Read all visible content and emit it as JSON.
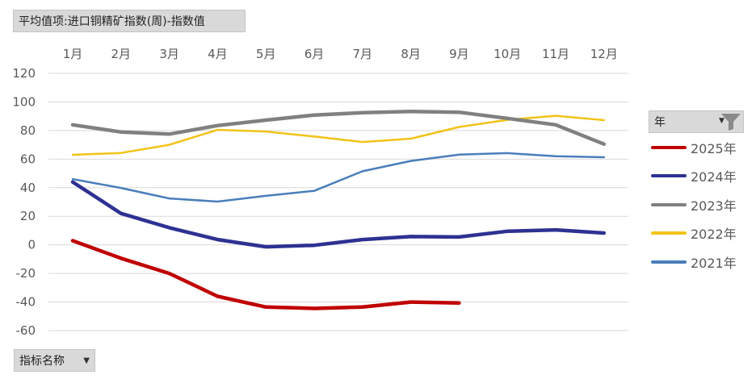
{
  "header": {
    "title": "平均值项:进口铜精矿指数(周)-指数值"
  },
  "footer": {
    "field_label": "指标名称"
  },
  "legend": {
    "title": "年",
    "position": "right"
  },
  "icons": {
    "dropdown": "dropdown-arrow-icon",
    "filter": "filter-funnel-icon"
  },
  "chart_data": {
    "type": "line",
    "categories": [
      "1月",
      "2月",
      "3月",
      "4月",
      "5月",
      "6月",
      "7月",
      "8月",
      "9月",
      "10月",
      "11月",
      "12月"
    ],
    "x_axis_position": "top",
    "ylim": [
      -60,
      120
    ],
    "yticks": [
      "120",
      "100",
      "80",
      "60",
      "40",
      "20",
      "0",
      "-20",
      "-40",
      "-60"
    ],
    "grid": true,
    "series": [
      {
        "name": "2025年",
        "color": "#c00000",
        "values": [
          2.9,
          -9.4,
          -20,
          -36,
          -43.5,
          -44.5,
          -43.5,
          -40,
          -40.7,
          null,
          null,
          null
        ]
      },
      {
        "name": "2024年",
        "color": "#2e3192",
        "values": [
          44,
          22,
          12,
          3.7,
          -1.4,
          -0.3,
          3.7,
          5.8,
          5.5,
          9.5,
          10.5,
          8.3
        ]
      },
      {
        "name": "2023年",
        "color": "#808080",
        "values": [
          84,
          79,
          77.5,
          83.5,
          87.3,
          90.8,
          92.5,
          93.3,
          92.8,
          88.5,
          84,
          70.5
        ]
      },
      {
        "name": "2022年",
        "color": "#f2c318",
        "values": [
          63,
          64.3,
          70,
          80.5,
          79.3,
          75.8,
          72,
          74.3,
          82.5,
          87.5,
          90.3,
          87.3
        ]
      },
      {
        "name": "2021年",
        "color": "#4a7ebb",
        "values": [
          46,
          39.8,
          32.5,
          30.3,
          34.3,
          37.8,
          51.5,
          58.7,
          63.2,
          64.2,
          62,
          61.3
        ]
      }
    ]
  }
}
